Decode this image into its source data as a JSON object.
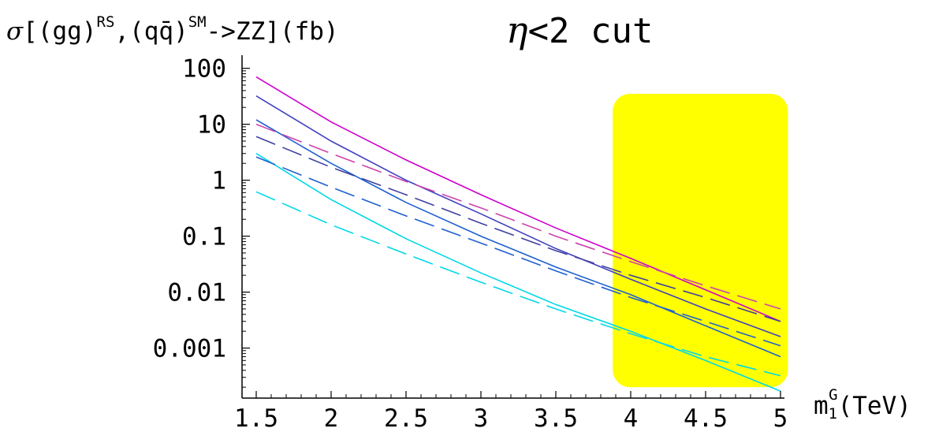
{
  "chart_data": {
    "type": "line",
    "title": {
      "sigma": "σ",
      "open": "[(gg)",
      "rs": "RS",
      "mid": ",(q",
      "qbar": "q̄",
      "close1": ")",
      "sm": "SM",
      "rest": "->ZZ](fb)",
      "eta": "η",
      "cut": "<2 cut"
    },
    "xlabel": {
      "main": "m",
      "sub": "1",
      "sup": "G",
      "unit": "(TeV)"
    },
    "xlim": [
      1.5,
      5
    ],
    "ylim": [
      0.00015,
      120
    ],
    "yscale": "log",
    "x_ticks": [
      "1.5",
      "2",
      "2.5",
      "3",
      "3.5",
      "4",
      "4.5",
      "5"
    ],
    "y_ticks": [
      "100",
      "10",
      "1",
      "0.1",
      "0.01",
      "0.001"
    ],
    "x": [
      1.5,
      2.0,
      2.5,
      3.0,
      3.5,
      4.0,
      4.5,
      5.0
    ],
    "series": [
      {
        "color": "#cc00cc",
        "style": "solid",
        "values": [
          70,
          11,
          2.3,
          0.55,
          0.14,
          0.04,
          0.011,
          0.003
        ]
      },
      {
        "color": "#4040c0",
        "style": "solid",
        "values": [
          32,
          5,
          1.0,
          0.25,
          0.06,
          0.017,
          0.005,
          0.0016
        ]
      },
      {
        "color": "#1e60d0",
        "style": "solid",
        "values": [
          12,
          2,
          0.4,
          0.1,
          0.028,
          0.009,
          0.0025,
          0.0007
        ]
      },
      {
        "color": "#00d8e8",
        "style": "solid",
        "values": [
          3,
          0.45,
          0.09,
          0.022,
          0.006,
          0.002,
          0.0006,
          0.00017
        ]
      },
      {
        "color": "#cc44aa",
        "style": "dashed",
        "values": [
          10,
          3.0,
          0.95,
          0.32,
          0.1,
          0.035,
          0.013,
          0.005
        ]
      },
      {
        "color": "#4040a0",
        "style": "dashed",
        "values": [
          6,
          1.7,
          0.55,
          0.17,
          0.055,
          0.02,
          0.008,
          0.003
        ]
      },
      {
        "color": "#1e60d0",
        "style": "dashed",
        "values": [
          2.6,
          0.75,
          0.23,
          0.075,
          0.024,
          0.008,
          0.003,
          0.0011
        ]
      },
      {
        "color": "#00d8e8",
        "style": "dashed",
        "values": [
          0.62,
          0.16,
          0.048,
          0.015,
          0.005,
          0.0018,
          0.0007,
          0.00032
        ]
      }
    ],
    "shaded_region": {
      "color": "#ffff00",
      "x_range": [
        3.88,
        5.05
      ],
      "y_range": [
        0.0002,
        35
      ]
    }
  }
}
